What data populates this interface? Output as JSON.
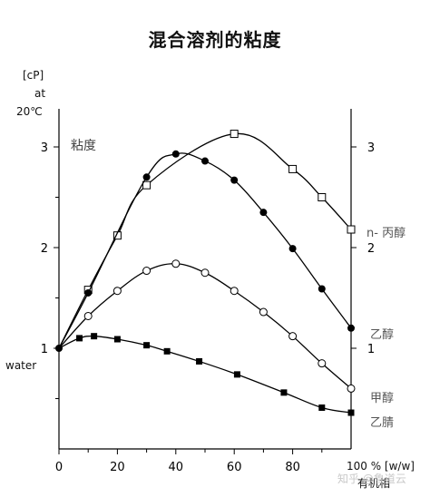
{
  "chart_data": {
    "type": "line",
    "title": "混合溶剂的粘度",
    "ylabel_lines": [
      "[cP]",
      "at",
      "20℃"
    ],
    "ylabel_inner": "粘度",
    "xlabel_top": "100 % [w/w]",
    "xlabel_bottom": "有机相",
    "y_start_label": "water",
    "xlim": [
      0,
      100
    ],
    "ylim": [
      0,
      3.4
    ],
    "x_ticks": [
      0,
      20,
      40,
      60,
      80
    ],
    "x_tick_labels": [
      "0",
      "20",
      "40",
      "60",
      "80"
    ],
    "y_ticks": [
      1,
      2,
      3
    ],
    "y_tick_labels": [
      "1",
      "2",
      "3"
    ],
    "series": [
      {
        "name": "n- 丙醇",
        "marker": "square-open",
        "x": [
          0,
          10,
          20,
          30,
          60,
          80,
          90,
          100
        ],
        "y": [
          1.0,
          1.58,
          2.12,
          2.62,
          3.13,
          2.78,
          2.5,
          2.18
        ]
      },
      {
        "name": "乙醇",
        "marker": "circle-filled",
        "x": [
          0,
          10,
          30,
          40,
          50,
          60,
          70,
          80,
          90,
          100
        ],
        "y": [
          1.0,
          1.55,
          2.7,
          2.93,
          2.86,
          2.67,
          2.35,
          1.99,
          1.59,
          1.2
        ]
      },
      {
        "name": "甲醇",
        "marker": "circle-open",
        "x": [
          0,
          10,
          20,
          30,
          40,
          50,
          60,
          70,
          80,
          90,
          100
        ],
        "y": [
          1.0,
          1.32,
          1.57,
          1.77,
          1.84,
          1.75,
          1.57,
          1.36,
          1.12,
          0.85,
          0.6
        ]
      },
      {
        "name": "乙腈",
        "marker": "square-filled",
        "x": [
          0,
          7,
          12,
          20,
          30,
          37,
          48,
          61,
          77,
          90,
          100
        ],
        "y": [
          1.0,
          1.1,
          1.12,
          1.09,
          1.03,
          0.97,
          0.87,
          0.74,
          0.56,
          0.41,
          0.36
        ]
      }
    ],
    "series_label_color": "#555555"
  },
  "watermark": "知乎 @鲁道云"
}
